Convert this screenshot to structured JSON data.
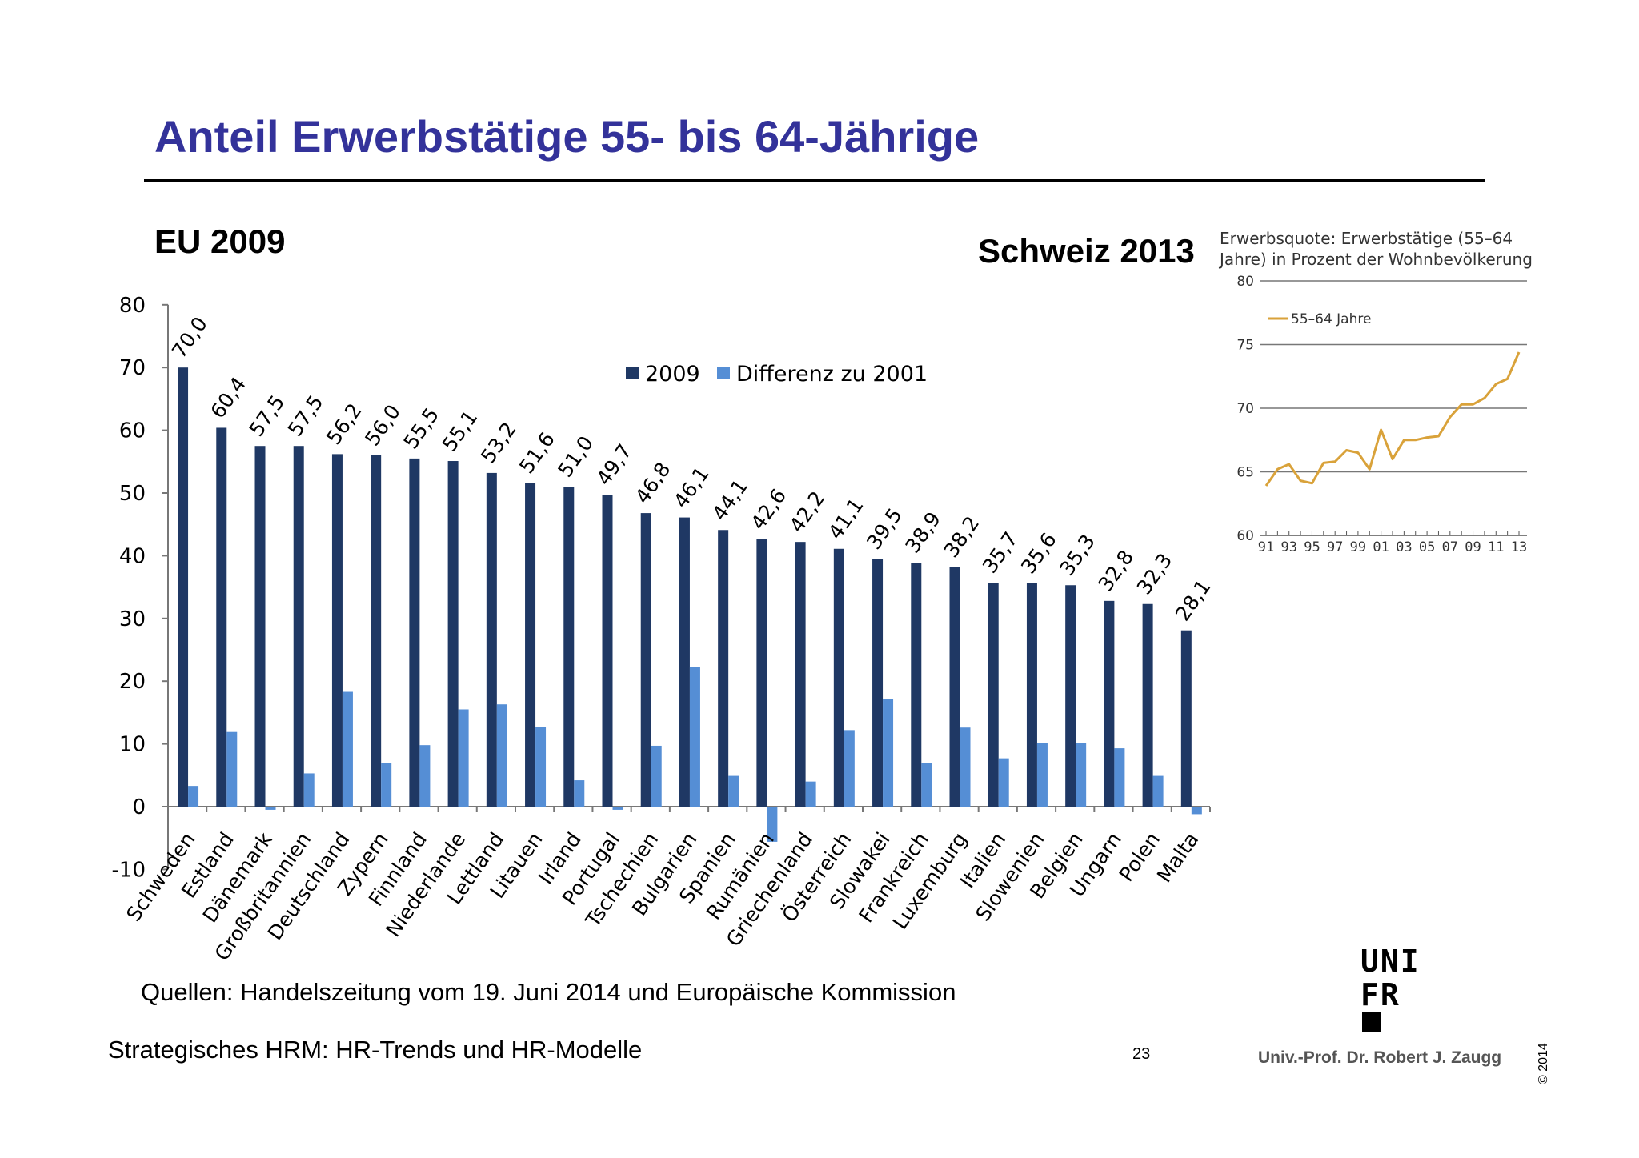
{
  "slide": {
    "title": "Anteil Erwerbstätige 55- bis 64-Jährige",
    "eu_label": "EU 2009",
    "ch_label": "Schweiz 2013",
    "source": "Quellen: Handelszeitung vom 19. Juni 2014 und Europäische Kommission",
    "course": "Strategisches HRM: HR-Trends und HR-Modelle",
    "page_number": "23",
    "author": "Univ.-Prof. Dr. Robert J. Zaugg",
    "copyright": "© 2014",
    "logo_lines": [
      "UNI",
      "FR"
    ]
  },
  "colors": {
    "title": "#33329a",
    "bar_2009": "#1f3864",
    "bar_diff": "#558ed5",
    "line_ch": "#d9a23a"
  },
  "chart_data": [
    {
      "type": "bar",
      "categories": [
        "Schweden",
        "Estland",
        "Dänemark",
        "Großbritannien",
        "Deutschland",
        "Zypern",
        "Finnland",
        "Niederlande",
        "Lettland",
        "Litauen",
        "Irland",
        "Portugal",
        "Tschechien",
        "Bulgarien",
        "Spanien",
        "Rumänien",
        "Griechenland",
        "Österreich",
        "Slowakei",
        "Frankreich",
        "Luxemburg",
        "Italien",
        "Slowenien",
        "Belgien",
        "Ungarn",
        "Polen",
        "Malta"
      ],
      "series": [
        {
          "name": "2009",
          "values": [
            70.0,
            60.4,
            57.5,
            57.5,
            56.2,
            56.0,
            55.5,
            55.1,
            53.2,
            51.6,
            51.0,
            49.7,
            46.8,
            46.1,
            44.1,
            42.6,
            42.2,
            41.1,
            39.5,
            38.9,
            38.2,
            35.7,
            35.6,
            35.3,
            32.8,
            32.3,
            28.1
          ],
          "labels": [
            "70,0",
            "60,4",
            "57,5",
            "57,5",
            "56,2",
            "56,0",
            "55,5",
            "55,1",
            "53,2",
            "51,6",
            "51,0",
            "49,7",
            "46,8",
            "46,1",
            "44,1",
            "42,6",
            "42,2",
            "41,1",
            "39,5",
            "38,9",
            "38,2",
            "35,7",
            "35,6",
            "35,3",
            "32,8",
            "32,3",
            "28,1"
          ]
        },
        {
          "name": "Differenz zu 2001",
          "values": [
            3.3,
            11.9,
            -0.5,
            5.3,
            18.3,
            6.9,
            9.8,
            15.5,
            16.3,
            12.7,
            4.2,
            -0.5,
            9.7,
            22.2,
            4.9,
            -5.6,
            4.0,
            12.2,
            17.1,
            7.0,
            12.6,
            7.7,
            10.1,
            10.1,
            9.3,
            4.9,
            -1.2
          ]
        }
      ],
      "ylim": [
        -10,
        80
      ],
      "yticks": [
        "-10",
        "0",
        "10",
        "20",
        "30",
        "40",
        "50",
        "60",
        "70",
        "80"
      ],
      "legend": "top-center",
      "grid": false
    },
    {
      "type": "line",
      "title": "Erwerbsquote: Erwerbstätige (55–64 Jahre) in Prozent der Wohnbevölkerung",
      "title_lines": [
        "Erwerbsquote: Erwerbstätige (55–64",
        "Jahre) in Prozent der Wohnbevölkerung"
      ],
      "x": [
        1991,
        1992,
        1993,
        1994,
        1995,
        1996,
        1997,
        1998,
        1999,
        2000,
        2001,
        2002,
        2003,
        2004,
        2005,
        2006,
        2007,
        2008,
        2009,
        2010,
        2011,
        2012,
        2013
      ],
      "xticks": [
        "91",
        "93",
        "95",
        "97",
        "99",
        "01",
        "03",
        "05",
        "07",
        "09",
        "11",
        "13"
      ],
      "series": [
        {
          "name": "55–64 Jahre",
          "values": [
            63.9,
            65.2,
            65.6,
            64.3,
            64.1,
            65.7,
            65.8,
            66.7,
            66.5,
            65.2,
            68.3,
            66.0,
            67.5,
            67.5,
            67.7,
            67.8,
            69.3,
            70.3,
            70.3,
            70.8,
            71.9,
            72.3,
            74.4
          ]
        }
      ],
      "ylim": [
        60,
        80
      ],
      "yticks": [
        "60",
        "65",
        "70",
        "75",
        "80"
      ],
      "legend": "top-left",
      "grid": true
    }
  ]
}
